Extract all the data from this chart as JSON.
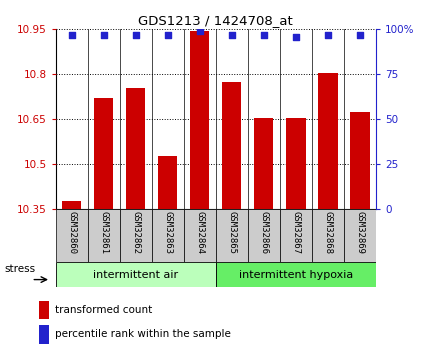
{
  "title": "GDS1213 / 1424708_at",
  "categories": [
    "GSM32860",
    "GSM32861",
    "GSM32862",
    "GSM32863",
    "GSM32864",
    "GSM32865",
    "GSM32866",
    "GSM32867",
    "GSM32868",
    "GSM32869"
  ],
  "bar_values": [
    10.375,
    10.72,
    10.755,
    10.525,
    10.945,
    10.775,
    10.655,
    10.655,
    10.805,
    10.675
  ],
  "percentile_values": [
    97,
    97,
    97,
    97,
    99,
    97,
    97,
    96,
    97,
    97
  ],
  "ylim": [
    10.35,
    10.95
  ],
  "yticks": [
    10.35,
    10.5,
    10.65,
    10.8,
    10.95
  ],
  "ytick_labels": [
    "10.35",
    "10.5",
    "10.65",
    "10.8",
    "10.95"
  ],
  "right_yticks": [
    0,
    25,
    50,
    75,
    100
  ],
  "right_ytick_labels": [
    "0",
    "25",
    "50",
    "75",
    "100%"
  ],
  "bar_color": "#cc0000",
  "dot_color": "#2222cc",
  "group1_label": "intermittent air",
  "group2_label": "intermittent hypoxia",
  "group1_color": "#bbffbb",
  "group2_color": "#66ee66",
  "stress_label": "stress",
  "legend_bar_label": "transformed count",
  "legend_dot_label": "percentile rank within the sample",
  "tick_label_color_left": "#cc0000",
  "tick_label_color_right": "#2222cc",
  "bg_xtick": "#cccccc",
  "n_group1": 5,
  "n_group2": 5
}
